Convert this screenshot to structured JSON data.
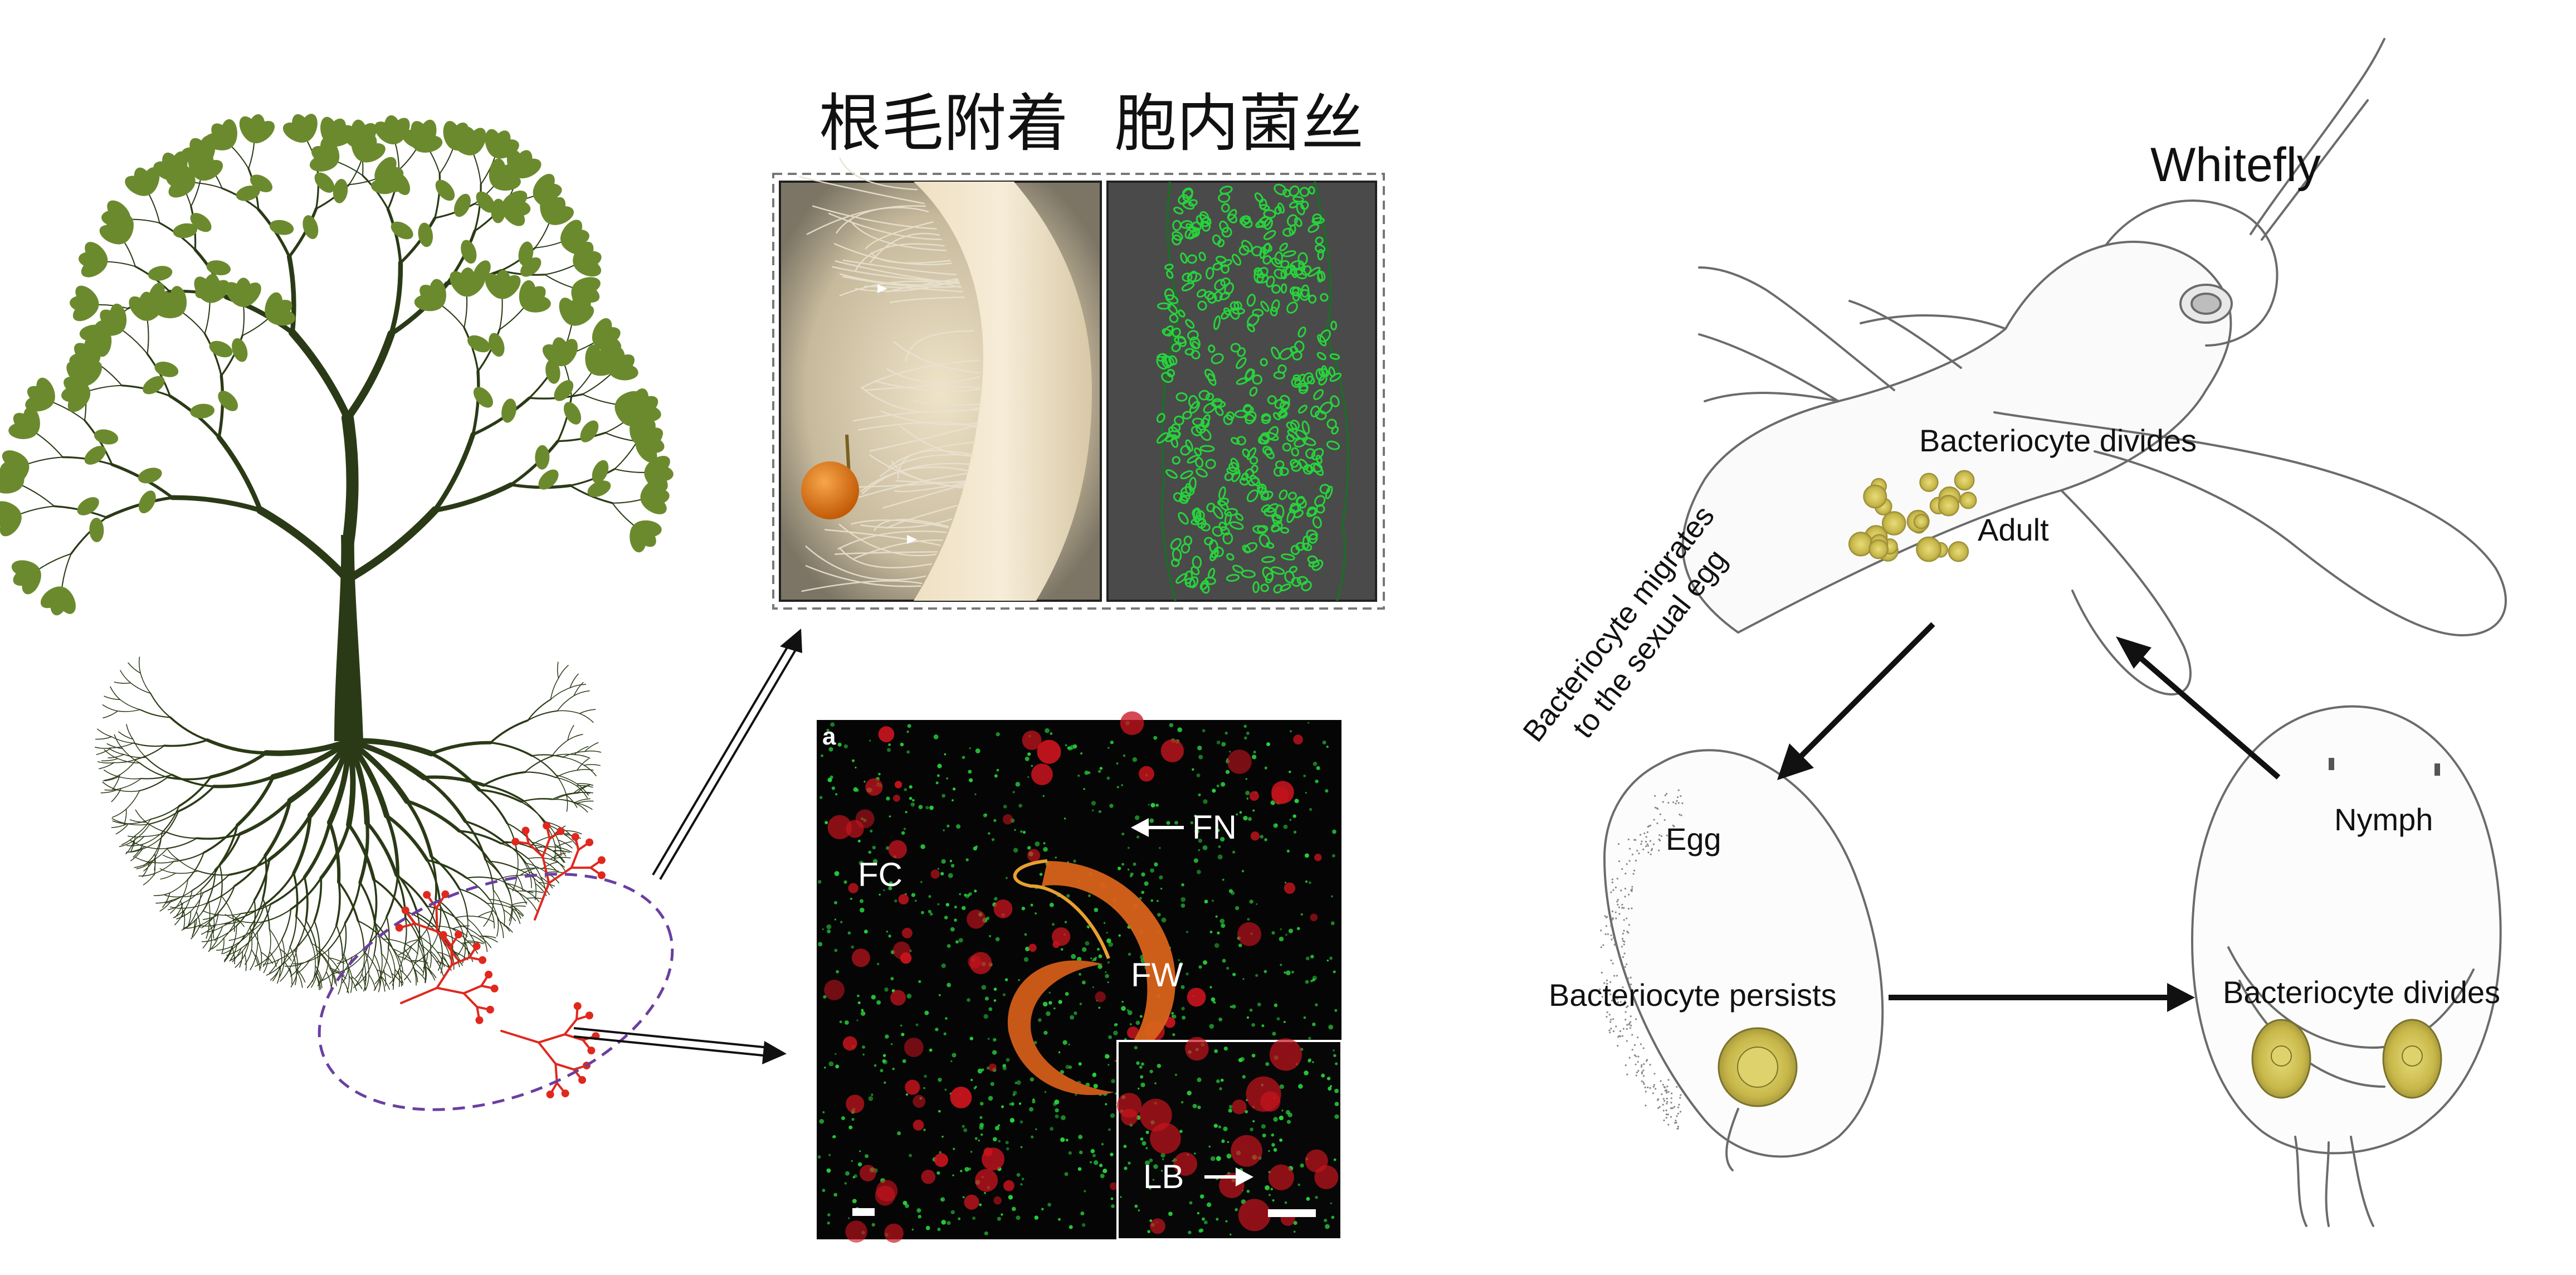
{
  "colors": {
    "tree": "#2b3a16",
    "leaf": "#6b8a2e",
    "root_hyphae": "#e0281e",
    "dash_circle": "#6a3fa0",
    "fluor_green": "#28d23c",
    "fluor_red": "#c8141e",
    "spore_orange": "#e07a10",
    "sketch": "#6b6b6b",
    "bacteriocyte": "#cdbf4e"
  },
  "icons": {
    "tree": "tree-illustration",
    "whitefly": "whitefly-sketch",
    "egg": "egg-sketch",
    "nymph": "nymph-sketch"
  },
  "left_panel": {
    "titles": {
      "root_hair_attachment": "根毛附着",
      "intracellular_hyphae": "胞内菌丝"
    },
    "micrograph": {
      "panel_letter": "a",
      "labels": {
        "fn": "FN",
        "fc": "FC",
        "fw": "FW",
        "lb": "LB"
      }
    }
  },
  "right_panel": {
    "title": "Whitefly",
    "stages": {
      "adult": "Adult",
      "egg": "Egg",
      "nymph": "Nymph"
    },
    "annotations": {
      "adult_divides": "Bacteriocyte divides",
      "migrates_line1": "Bacteriocyte migrates",
      "migrates_line2": "to the sexual egg",
      "persists": "Bacteriocyte persists",
      "nymph_divides": "Bacteriocyte divides"
    }
  }
}
